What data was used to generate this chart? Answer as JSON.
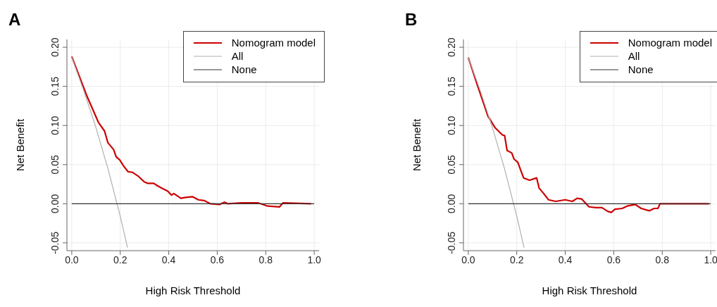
{
  "chart_data": [
    {
      "type": "line",
      "title": "A",
      "xlabel": "High Risk Threshold",
      "ylabel": "Net Benefit",
      "xlim": [
        -0.02,
        1.02
      ],
      "ylim": [
        -0.06,
        0.21
      ],
      "xticks": [
        {
          "value": 0,
          "label": "0.0"
        },
        {
          "value": 0.2,
          "label": "0.2"
        },
        {
          "value": 0.4,
          "label": "0.4"
        },
        {
          "value": 0.6,
          "label": "0.6"
        },
        {
          "value": 0.8,
          "label": "0.8"
        },
        {
          "value": 1,
          "label": "1.0"
        }
      ],
      "yticks": [
        {
          "value": -0.05,
          "label": "-0.05"
        },
        {
          "value": 0,
          "label": "0.00"
        },
        {
          "value": 0.05,
          "label": "0.05"
        },
        {
          "value": 0.1,
          "label": "0.10"
        },
        {
          "value": 0.15,
          "label": "0.15"
        },
        {
          "value": 0.2,
          "label": "0.20"
        }
      ],
      "grid": true,
      "legend": "top right",
      "series": [
        {
          "name": "Nomogram model",
          "color": "#cc0000",
          "x": [
            0,
            0.062,
            0.11,
            0.135,
            0.149,
            0.173,
            0.183,
            0.198,
            0.212,
            0.232,
            0.251,
            0.275,
            0.299,
            0.314,
            0.338,
            0.353,
            0.377,
            0.396,
            0.411,
            0.421,
            0.45,
            0.469,
            0.498,
            0.522,
            0.547,
            0.571,
            0.61,
            0.629,
            0.643,
            0.702,
            0.769,
            0.789,
            0.808,
            0.857,
            0.871,
            0.987
          ],
          "values": [
            0.188,
            0.138,
            0.104,
            0.093,
            0.078,
            0.069,
            0.06,
            0.056,
            0.049,
            0.041,
            0.04,
            0.035,
            0.028,
            0.026,
            0.026,
            0.023,
            0.019,
            0.016,
            0.011,
            0.013,
            0.007,
            0.008,
            0.009,
            0.005,
            0.004,
            0,
            -0.001,
            0.002,
            0,
            0.001,
            0.001,
            -0.001,
            -0.003,
            -0.004,
            0.001,
            0
          ]
        },
        {
          "name": "All",
          "color": "#b0b0b0",
          "x": [
            0,
            0.05,
            0.1,
            0.15,
            0.2,
            0.23
          ],
          "values": [
            0.187,
            0.144,
            0.097,
            0.044,
            -0.016,
            -0.056
          ]
        },
        {
          "name": "None",
          "color": "#333333",
          "x": [
            0,
            1
          ],
          "values": [
            0,
            0
          ]
        }
      ]
    },
    {
      "type": "line",
      "title": "B",
      "xlabel": "High Risk Threshold",
      "ylabel": "Net Benefit",
      "xlim": [
        -0.02,
        1.02
      ],
      "ylim": [
        -0.06,
        0.21
      ],
      "xticks": [
        {
          "value": 0,
          "label": "0.0"
        },
        {
          "value": 0.2,
          "label": "0.2"
        },
        {
          "value": 0.4,
          "label": "0.4"
        },
        {
          "value": 0.6,
          "label": "0.6"
        },
        {
          "value": 0.8,
          "label": "0.8"
        },
        {
          "value": 1,
          "label": "1.0"
        }
      ],
      "yticks": [
        {
          "value": -0.05,
          "label": "-0.05"
        },
        {
          "value": 0,
          "label": "0.00"
        },
        {
          "value": 0.05,
          "label": "0.05"
        },
        {
          "value": 0.1,
          "label": "0.10"
        },
        {
          "value": 0.15,
          "label": "0.15"
        },
        {
          "value": 0.2,
          "label": "0.20"
        }
      ],
      "grid": true,
      "legend": "top right",
      "series": [
        {
          "name": "Nomogram model",
          "color": "#cc0000",
          "x": [
            0,
            0.037,
            0.081,
            0.111,
            0.14,
            0.15,
            0.16,
            0.179,
            0.189,
            0.204,
            0.228,
            0.253,
            0.282,
            0.292,
            0.311,
            0.331,
            0.36,
            0.4,
            0.429,
            0.449,
            0.468,
            0.498,
            0.527,
            0.551,
            0.576,
            0.59,
            0.605,
            0.635,
            0.655,
            0.689,
            0.713,
            0.747,
            0.767,
            0.782,
            0.791,
            0.992
          ],
          "values": [
            0.187,
            0.152,
            0.112,
            0.097,
            0.088,
            0.087,
            0.068,
            0.065,
            0.057,
            0.053,
            0.033,
            0.03,
            0.033,
            0.02,
            0.013,
            0.005,
            0.003,
            0.005,
            0.003,
            0.007,
            0.006,
            -0.004,
            -0.005,
            -0.005,
            -0.01,
            -0.011,
            -0.007,
            -0.006,
            -0.003,
            -0.001,
            -0.006,
            -0.009,
            -0.006,
            -0.006,
            0,
            0
          ]
        },
        {
          "name": "All",
          "color": "#b0b0b0",
          "x": [
            0,
            0.05,
            0.1,
            0.15,
            0.2,
            0.23
          ],
          "values": [
            0.187,
            0.144,
            0.097,
            0.044,
            -0.016,
            -0.056
          ]
        },
        {
          "name": "None",
          "color": "#333333",
          "x": [
            0,
            1
          ],
          "values": [
            0,
            0
          ]
        }
      ]
    }
  ]
}
